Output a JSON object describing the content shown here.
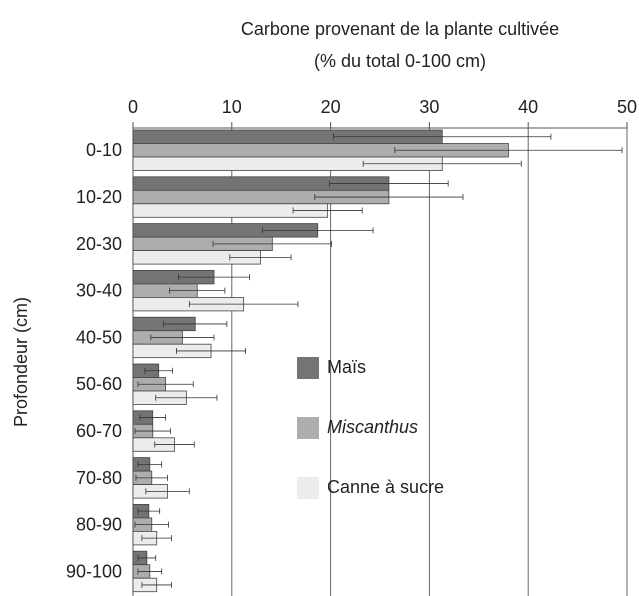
{
  "chart_data": {
    "type": "bar",
    "orientation": "horizontal",
    "title": [
      "Carbone provenant de la plante cultivée",
      "(% du total 0-100 cm)"
    ],
    "y_label": "Profondeur (cm)",
    "categories": [
      "0-10",
      "10-20",
      "20-30",
      "30-40",
      "40-50",
      "50-60",
      "60-70",
      "70-80",
      "80-90",
      "90-100"
    ],
    "series": [
      {
        "name": "Maïs",
        "color": "#747474",
        "italic": false,
        "values": [
          31.3,
          25.9,
          18.7,
          8.2,
          6.3,
          2.6,
          2.0,
          1.7,
          1.6,
          1.4
        ],
        "errors": [
          11,
          6,
          5.6,
          3.6,
          3.2,
          1.4,
          1.3,
          1.2,
          1.1,
          0.9
        ]
      },
      {
        "name": "Miscanthus",
        "color": "#adadad",
        "italic": true,
        "values": [
          38,
          25.9,
          14.1,
          6.5,
          5.0,
          3.3,
          2.0,
          1.9,
          1.9,
          1.7
        ],
        "errors": [
          11.5,
          7.5,
          6,
          2.8,
          3.2,
          2.8,
          1.8,
          1.6,
          1.7,
          1.2
        ]
      },
      {
        "name": "Canne à sucre",
        "color": "#ececec",
        "italic": false,
        "values": [
          31.3,
          19.7,
          12.9,
          11.2,
          7.9,
          5.4,
          4.2,
          3.5,
          2.4,
          2.4
        ],
        "errors": [
          8,
          3.5,
          3.1,
          5.5,
          3.5,
          3.1,
          2,
          2.2,
          1.5,
          1.5
        ]
      }
    ],
    "xlim": [
      0,
      50
    ],
    "xticks": [
      0,
      10,
      20,
      30,
      40,
      50
    ],
    "grid": true
  }
}
